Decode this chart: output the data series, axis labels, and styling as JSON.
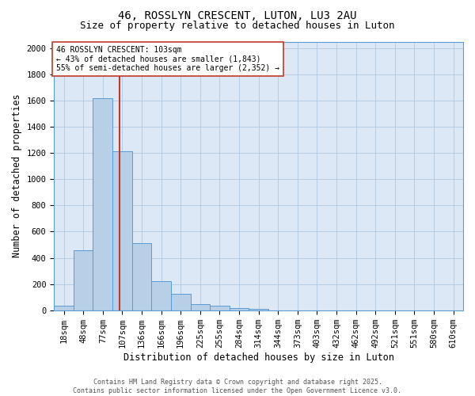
{
  "title1": "46, ROSSLYN CRESCENT, LUTON, LU3 2AU",
  "title2": "Size of property relative to detached houses in Luton",
  "xlabel": "Distribution of detached houses by size in Luton",
  "ylabel": "Number of detached properties",
  "categories": [
    "18sqm",
    "48sqm",
    "77sqm",
    "107sqm",
    "136sqm",
    "166sqm",
    "196sqm",
    "225sqm",
    "255sqm",
    "284sqm",
    "314sqm",
    "344sqm",
    "373sqm",
    "403sqm",
    "432sqm",
    "462sqm",
    "492sqm",
    "521sqm",
    "551sqm",
    "580sqm",
    "610sqm"
  ],
  "values": [
    35,
    460,
    1620,
    1210,
    510,
    220,
    125,
    48,
    35,
    18,
    8,
    0,
    0,
    0,
    0,
    0,
    0,
    0,
    0,
    0,
    0
  ],
  "bar_color": "#b8cfe8",
  "bar_edge_color": "#5b9bd5",
  "vline_x": 2.85,
  "vline_color": "#c0392b",
  "annotation_text": "46 ROSSLYN CRESCENT: 103sqm\n← 43% of detached houses are smaller (1,843)\n55% of semi-detached houses are larger (2,352) →",
  "annotation_box_color": "#ffffff",
  "annotation_box_edge": "#c0392b",
  "ylim": [
    0,
    2050
  ],
  "yticks": [
    0,
    200,
    400,
    600,
    800,
    1000,
    1200,
    1400,
    1600,
    1800,
    2000
  ],
  "footer1": "Contains HM Land Registry data © Crown copyright and database right 2025.",
  "footer2": "Contains public sector information licensed under the Open Government Licence v3.0.",
  "fig_bg_color": "#ffffff",
  "plot_bg_color": "#dce8f5",
  "grid_color": "#b0c8e0",
  "title_fontsize": 10,
  "subtitle_fontsize": 9,
  "axis_label_fontsize": 8.5,
  "tick_fontsize": 7.5,
  "annotation_fontsize": 7,
  "footer_fontsize": 6
}
